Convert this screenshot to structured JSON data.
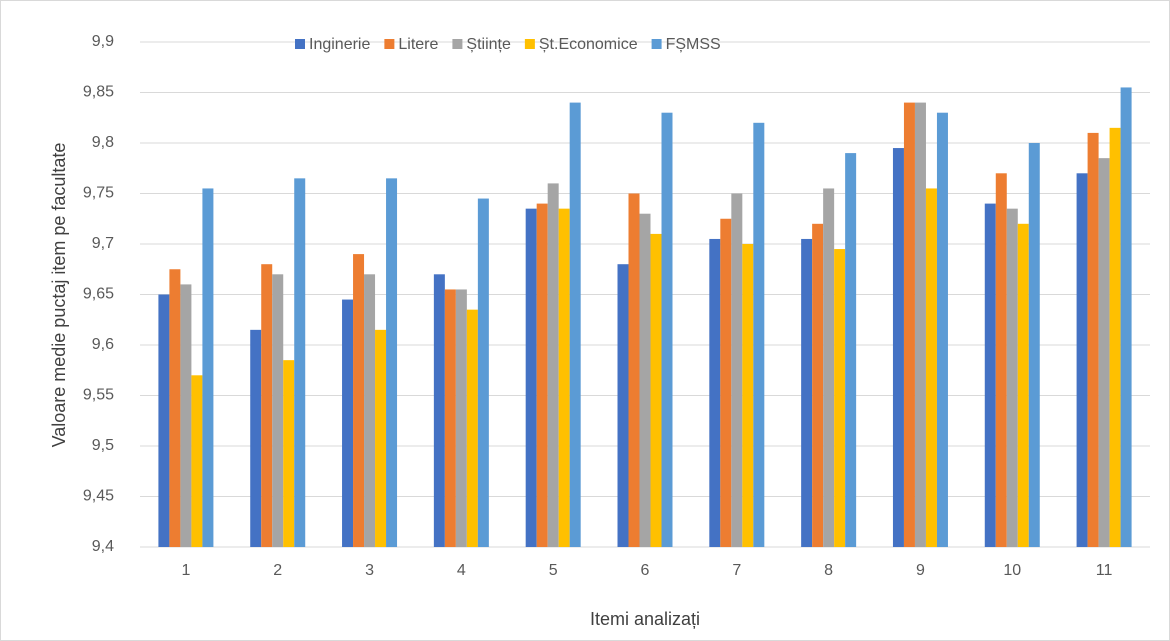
{
  "chart_data": {
    "type": "bar",
    "x_label": "Itemi analizați",
    "y_label": "Valoare medie puctaj item pe facultate",
    "categories": [
      "1",
      "2",
      "3",
      "4",
      "5",
      "6",
      "7",
      "8",
      "9",
      "10",
      "11"
    ],
    "series": [
      {
        "name": "Inginerie",
        "color": "#4472c4",
        "values": [
          9.65,
          9.615,
          9.645,
          9.67,
          9.735,
          9.68,
          9.705,
          9.705,
          9.795,
          9.74,
          9.77
        ]
      },
      {
        "name": "Litere",
        "color": "#ed7d31",
        "values": [
          9.675,
          9.68,
          9.69,
          9.655,
          9.74,
          9.75,
          9.725,
          9.72,
          9.84,
          9.77,
          9.81
        ]
      },
      {
        "name": "Științe",
        "color": "#a5a5a5",
        "values": [
          9.66,
          9.67,
          9.67,
          9.655,
          9.76,
          9.73,
          9.75,
          9.755,
          9.84,
          9.735,
          9.785
        ]
      },
      {
        "name": "Șt.Economice",
        "color": "#ffc000",
        "values": [
          9.57,
          9.585,
          9.615,
          9.635,
          9.735,
          9.71,
          9.7,
          9.695,
          9.755,
          9.72,
          9.815
        ]
      },
      {
        "name": "FȘMSS",
        "color": "#5b9bd5",
        "values": [
          9.755,
          9.765,
          9.765,
          9.745,
          9.84,
          9.83,
          9.82,
          9.79,
          9.83,
          9.8,
          9.855
        ]
      }
    ],
    "ylim": [
      9.4,
      9.9
    ],
    "yticks": [
      {
        "value": 9.4,
        "label": "9,4"
      },
      {
        "value": 9.45,
        "label": "9,45"
      },
      {
        "value": 9.5,
        "label": "9,5"
      },
      {
        "value": 9.55,
        "label": "9,55"
      },
      {
        "value": 9.6,
        "label": "9,6"
      },
      {
        "value": 9.65,
        "label": "9,65"
      },
      {
        "value": 9.7,
        "label": "9,7"
      },
      {
        "value": 9.75,
        "label": "9,75"
      },
      {
        "value": 9.8,
        "label": "9,8"
      },
      {
        "value": 9.85,
        "label": "9,85"
      },
      {
        "value": 9.9,
        "label": "9,9"
      }
    ],
    "grid": true,
    "legend": "top"
  }
}
